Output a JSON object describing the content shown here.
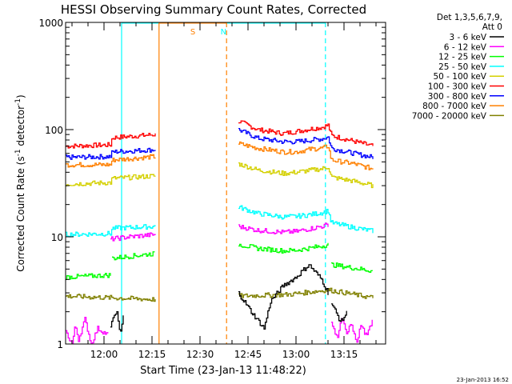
{
  "chart_data": {
    "type": "line",
    "title": "HESSI Observing Summary Count Rates, Corrected",
    "xlabel": "Start Time (23-Jan-13 11:48:22)",
    "ylabel_main": "Corrected Count Rate (s",
    "ylabel_sup1": "-1",
    "ylabel_mid": " detector",
    "ylabel_sup2": "-1",
    "ylabel_end": ")",
    "yscale": "log",
    "ylim": [
      1,
      1000
    ],
    "xlim_min": [
      0,
      100
    ],
    "y_ticks": [
      "1",
      "10",
      "100",
      "1000"
    ],
    "x_ticks": [
      {
        "label": "12:00",
        "min": 12
      },
      {
        "label": "12:15",
        "min": 27
      },
      {
        "label": "12:30",
        "min": 42
      },
      {
        "label": "12:45",
        "min": 57
      },
      {
        "label": "13:00",
        "min": 72
      },
      {
        "label": "13:15",
        "min": 87
      }
    ],
    "legend": {
      "position": "right",
      "header": [
        "Det 1,3,5,6,7,9,",
        "Att 0"
      ],
      "entries": [
        {
          "name": "3 - 6 keV",
          "color": "#000000"
        },
        {
          "name": "6 - 12 keV",
          "color": "#ff00ff"
        },
        {
          "name": "12 - 25 keV",
          "color": "#00ff00"
        },
        {
          "name": "25 - 50 keV",
          "color": "#00ffff"
        },
        {
          "name": "50 - 100 keV",
          "color": "#d4d000"
        },
        {
          "name": "100 - 300 keV",
          "color": "#ff0000"
        },
        {
          "name": "300 - 800 keV",
          "color": "#0000ff"
        },
        {
          "name": "800 - 7000 keV",
          "color": "#ff8000"
        },
        {
          "name": "7000 - 20000 keV",
          "color": "#808000"
        }
      ]
    },
    "markers": [
      {
        "label": "N",
        "color": "#00ffff",
        "start_min": 17.5,
        "end_min": 81.2
      },
      {
        "label": "S",
        "color": "#ff8000",
        "start_min": 29.2,
        "end_min": 50.3
      }
    ],
    "series": [
      {
        "name": "100 - 300 keV",
        "color": "#ff0000",
        "segments": [
          {
            "x": [
              0,
              14,
              14.5,
              28
            ],
            "y": [
              70,
              72,
              84,
              90
            ]
          },
          {
            "x": [
              54,
              60,
              68,
              72,
              77,
              80,
              82,
              83,
              90,
              96
            ],
            "y": [
              120,
              100,
              92,
              96,
              102,
              105,
              110,
              88,
              78,
              70
            ]
          }
        ]
      },
      {
        "name": "300 - 800 keV",
        "color": "#0000ff",
        "segments": [
          {
            "x": [
              0,
              14,
              14.5,
              28
            ],
            "y": [
              55,
              56,
              62,
              65
            ]
          },
          {
            "x": [
              54,
              60,
              68,
              72,
              77,
              80,
              82,
              83,
              90,
              96
            ],
            "y": [
              100,
              83,
              77,
              77,
              80,
              82,
              85,
              67,
              60,
              55
            ]
          }
        ]
      },
      {
        "name": "800 - 7000 keV",
        "color": "#ff8000",
        "segments": [
          {
            "x": [
              0,
              14,
              14.5,
              28
            ],
            "y": [
              47,
              47,
              52,
              56
            ]
          },
          {
            "x": [
              54,
              60,
              68,
              72,
              77,
              80,
              82,
              83,
              90,
              96
            ],
            "y": [
              74,
              67,
              62,
              62,
              66,
              67,
              70,
              52,
              48,
              43
            ]
          }
        ]
      },
      {
        "name": "50 - 100 keV",
        "color": "#d4d000",
        "segments": [
          {
            "x": [
              0,
              14,
              14.5,
              28
            ],
            "y": [
              31,
              32,
              35,
              37
            ]
          },
          {
            "x": [
              54,
              60,
              68,
              72,
              77,
              80,
              82,
              83,
              90,
              96
            ],
            "y": [
              48,
              42,
              39,
              40,
              42,
              43,
              45,
              36,
              33,
              30
            ]
          }
        ]
      },
      {
        "name": "25 - 50 keV",
        "color": "#00ffff",
        "segments": [
          {
            "x": [
              0,
              14,
              14.5,
              28
            ],
            "y": [
              10.5,
              10.7,
              12,
              12.5
            ]
          },
          {
            "x": [
              54,
              60,
              68,
              72,
              77,
              80,
              82,
              83,
              90,
              96
            ],
            "y": [
              19,
              16.5,
              15.3,
              15.5,
              16.2,
              16.8,
              17.5,
              13.5,
              12.2,
              11.3
            ]
          }
        ]
      },
      {
        "name": "6 - 12 keV",
        "color": "#ff00ff",
        "segments": [
          {
            "x": [
              0,
              2,
              3,
              4,
              6,
              8,
              10,
              13.5
            ],
            "y": [
              1.3,
              1.0,
              1.5,
              1.1,
              1.7,
              1.0,
              1.4,
              1.2
            ]
          },
          {
            "x": [
              14,
              20,
              28
            ],
            "y": [
              9.5,
              10,
              10.5
            ]
          },
          {
            "x": [
              54,
              60,
              68,
              72,
              77,
              80,
              82
            ],
            "y": [
              12.5,
              11.5,
              11,
              11.2,
              12,
              12.5,
              13
            ]
          },
          {
            "x": [
              83,
              85,
              86,
              88,
              89,
              91,
              92,
              94,
              96
            ],
            "y": [
              1.6,
              1.1,
              1.8,
              1.2,
              1.6,
              1.0,
              1.5,
              1.2,
              1.7
            ]
          }
        ]
      },
      {
        "name": "12 - 25 keV",
        "color": "#00ff00",
        "segments": [
          {
            "x": [
              0,
              14
            ],
            "y": [
              4.2,
              4.4
            ]
          },
          {
            "x": [
              14.5,
              28
            ],
            "y": [
              6.3,
              7
            ]
          },
          {
            "x": [
              54,
              60,
              68,
              72,
              77,
              80,
              82
            ],
            "y": [
              8.5,
              7.8,
              7.4,
              7.5,
              7.9,
              8.2,
              8.5
            ]
          },
          {
            "x": [
              83,
              96
            ],
            "y": [
              5.5,
              4.8
            ]
          }
        ]
      },
      {
        "name": "7000 - 20000 keV",
        "color": "#808000",
        "segments": [
          {
            "x": [
              0,
              28
            ],
            "y": [
              2.8,
              2.6
            ]
          },
          {
            "x": [
              54,
              70,
              82,
              96
            ],
            "y": [
              2.8,
              2.9,
              3.2,
              2.7
            ]
          }
        ]
      },
      {
        "name": "3 - 6 keV",
        "color": "#000000",
        "segments": [
          {
            "x": [
              14,
              16,
              17,
              18
            ],
            "y": [
              1.5,
              2.0,
              1.2,
              1.8
            ]
          },
          {
            "x": [
              54,
              58,
              62,
              64,
              68,
              72,
              76,
              80,
              82
            ],
            "y": [
              3.0,
              2.0,
              1.4,
              2.5,
              3.5,
              4.2,
              5.5,
              4.0,
              3.0
            ]
          },
          {
            "x": [
              83,
              86,
              88
            ],
            "y": [
              2.4,
              1.6,
              2.0
            ]
          }
        ]
      }
    ]
  },
  "timestamp": "23-Jan-2013 16:52"
}
